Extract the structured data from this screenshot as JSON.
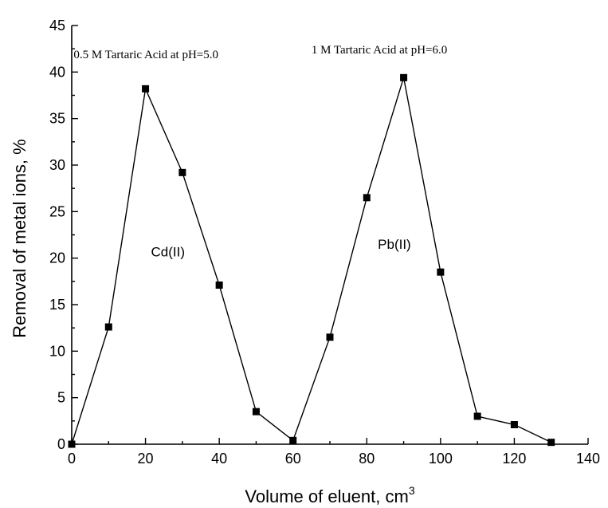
{
  "chart_data": {
    "type": "line",
    "title": "",
    "xlabel": "Volume of eluent, cm",
    "xlabel_superscript": "3",
    "ylabel": "Removal of metal ions, %",
    "xlim": [
      0,
      140
    ],
    "ylim": [
      0,
      45
    ],
    "xticks": [
      "0",
      "20",
      "40",
      "60",
      "80",
      "100",
      "120",
      "140"
    ],
    "yticks": [
      "0",
      "5",
      "10",
      "15",
      "20",
      "25",
      "30",
      "35",
      "40",
      "45"
    ],
    "grid": false,
    "legend": "none",
    "series": [
      {
        "x": [
          0,
          10,
          20,
          30,
          40,
          50,
          60,
          70,
          80,
          90,
          100,
          110,
          120,
          130
        ],
        "y": [
          0,
          12.6,
          38.2,
          29.2,
          17.1,
          3.5,
          0.4,
          11.5,
          26.5,
          39.4,
          18.5,
          3.0,
          2.1,
          0.2
        ],
        "marker": "square",
        "color": "#000000"
      }
    ],
    "annotations": [
      {
        "id": "cd-condition",
        "text": "0.5 M Tartaric Acid at pH=5.0",
        "x": 0.5,
        "y": 41.5,
        "font": "serif"
      },
      {
        "id": "pb-condition",
        "text": "1 M Tartaric Acid at pH=6.0",
        "x": 65,
        "y": 42.0,
        "font": "serif"
      },
      {
        "id": "cd-label",
        "text": "Cd(II)",
        "x": 21.5,
        "y": 20.2,
        "font": "sans"
      },
      {
        "id": "pb-label",
        "text": "Pb(II)",
        "x": 83,
        "y": 21.0,
        "font": "sans"
      }
    ]
  }
}
